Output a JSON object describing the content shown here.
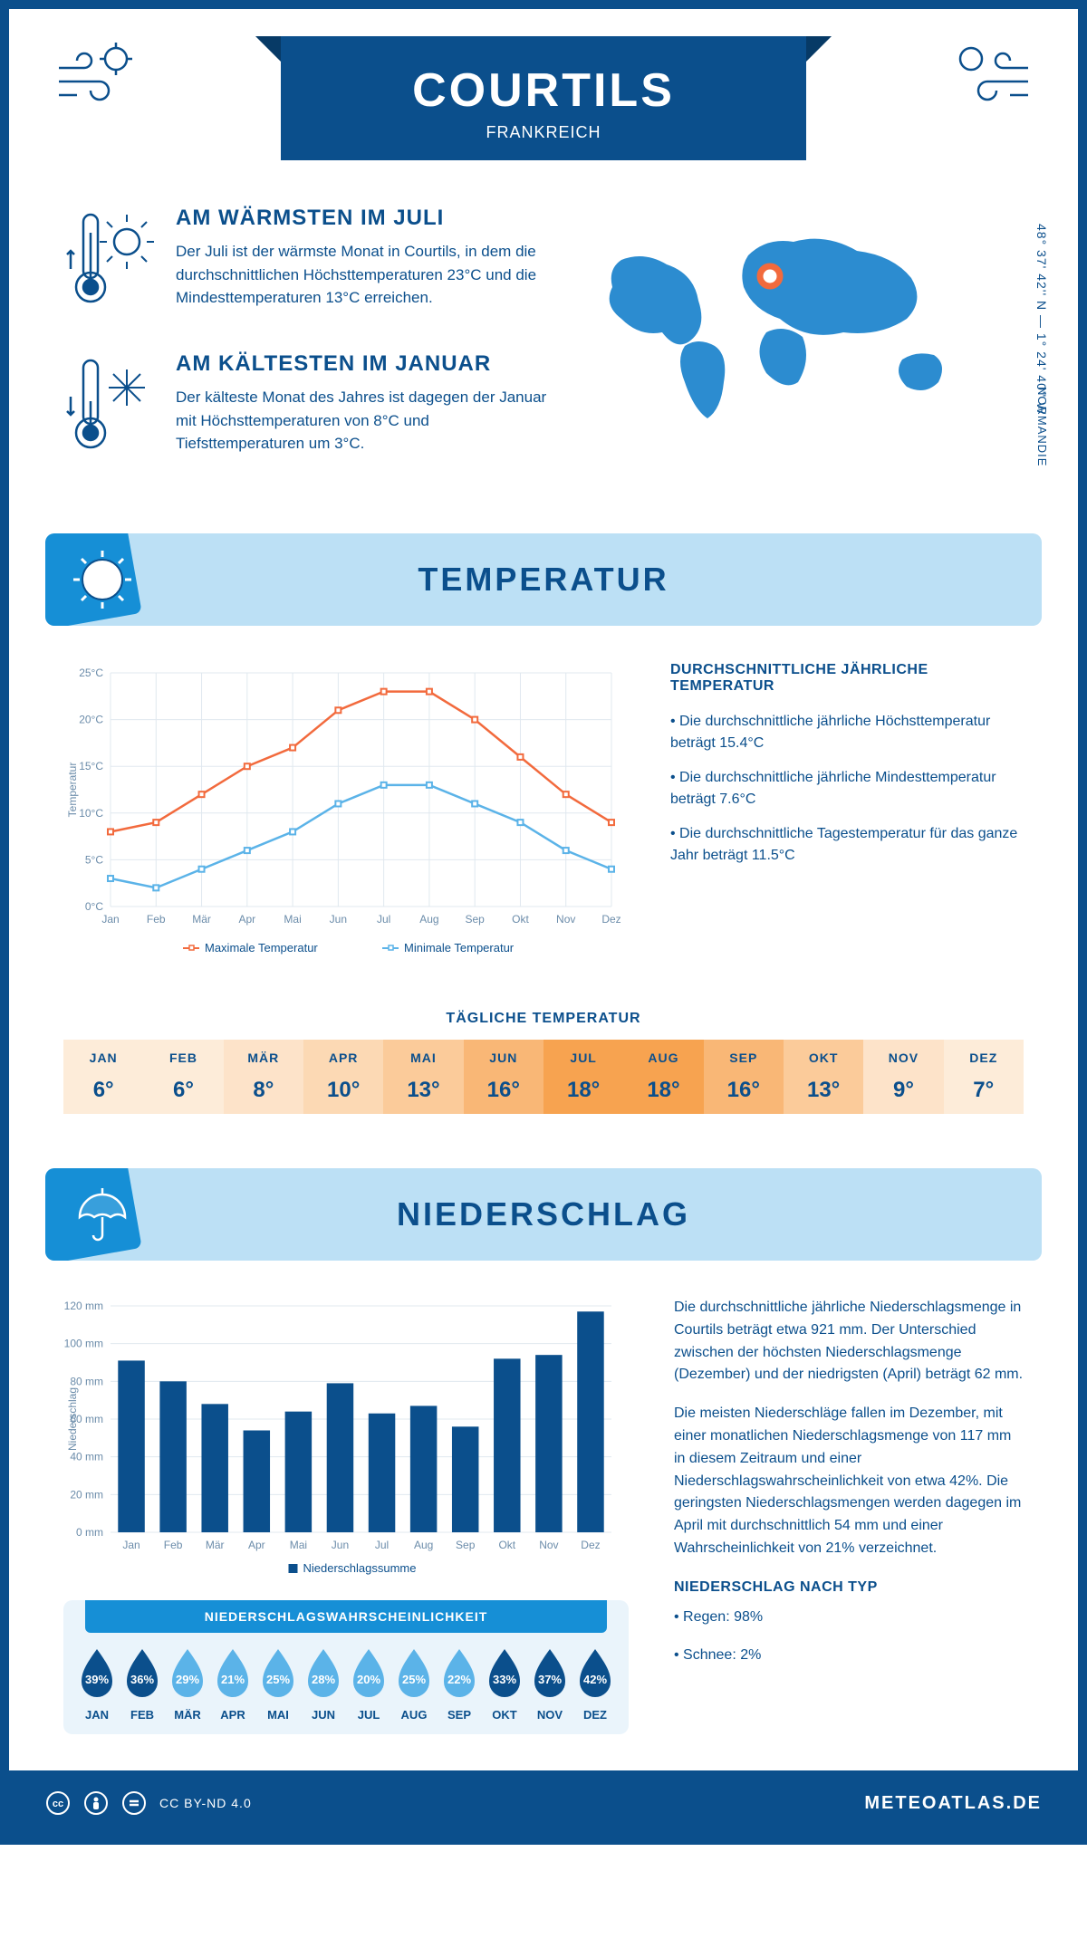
{
  "header": {
    "title": "COURTILS",
    "subtitle": "FRANKREICH"
  },
  "coords": "48° 37' 42'' N — 1° 24' 40'' W",
  "region": "NORMANDIE",
  "facts": {
    "warm": {
      "title": "AM WÄRMSTEN IM JULI",
      "text": "Der Juli ist der wärmste Monat in Courtils, in dem die durchschnittlichen Höchsttemperaturen 23°C und die Mindesttemperaturen 13°C erreichen."
    },
    "cold": {
      "title": "AM KÄLTESTEN IM JANUAR",
      "text": "Der kälteste Monat des Jahres ist dagegen der Januar mit Höchsttemperaturen von 8°C und Tiefsttemperaturen um 3°C."
    }
  },
  "temperature": {
    "section_title": "TEMPERATUR",
    "months": [
      "Jan",
      "Feb",
      "Mär",
      "Apr",
      "Mai",
      "Jun",
      "Jul",
      "Aug",
      "Sep",
      "Okt",
      "Nov",
      "Dez"
    ],
    "max": [
      8,
      9,
      12,
      15,
      17,
      21,
      23,
      23,
      20,
      16,
      12,
      9
    ],
    "min": [
      3,
      2,
      4,
      6,
      8,
      11,
      13,
      13,
      11,
      9,
      6,
      4
    ],
    "ylim": [
      0,
      25
    ],
    "ytick_step": 5,
    "ylabel": "Temperatur",
    "max_color": "#f26a3d",
    "min_color": "#5bb3e8",
    "grid_color": "#e0e8ef",
    "legend_max": "Maximale Temperatur",
    "legend_min": "Minimale Temperatur",
    "info_title": "DURCHSCHNITTLICHE JÄHRLICHE TEMPERATUR",
    "bullets": [
      "• Die durchschnittliche jährliche Höchsttemperatur beträgt 15.4°C",
      "• Die durchschnittliche jährliche Mindesttemperatur beträgt 7.6°C",
      "• Die durchschnittliche Tagestemperatur für das ganze Jahr beträgt 11.5°C"
    ],
    "daily_title": "TÄGLICHE TEMPERATUR",
    "daily_months": [
      "JAN",
      "FEB",
      "MÄR",
      "APR",
      "MAI",
      "JUN",
      "JUL",
      "AUG",
      "SEP",
      "OKT",
      "NOV",
      "DEZ"
    ],
    "daily_values": [
      "6°",
      "6°",
      "8°",
      "10°",
      "13°",
      "16°",
      "18°",
      "18°",
      "16°",
      "13°",
      "9°",
      "7°"
    ],
    "daily_colors": [
      "#fdecd9",
      "#fdecd9",
      "#fde3c9",
      "#fcd9b4",
      "#fbcb9a",
      "#f9b776",
      "#f7a350",
      "#f7a350",
      "#f9b776",
      "#fbcb9a",
      "#fde3c9",
      "#fdecd9"
    ]
  },
  "precipitation": {
    "section_title": "NIEDERSCHLAG",
    "months": [
      "Jan",
      "Feb",
      "Mär",
      "Apr",
      "Mai",
      "Jun",
      "Jul",
      "Aug",
      "Sep",
      "Okt",
      "Nov",
      "Dez"
    ],
    "values": [
      91,
      80,
      68,
      54,
      64,
      79,
      63,
      67,
      56,
      92,
      94,
      117
    ],
    "ylim": [
      0,
      120
    ],
    "ytick_step": 20,
    "ylabel": "Niederschlag",
    "bar_color": "#0b4f8c",
    "grid_color": "#e0e8ef",
    "legend": "Niederschlagssumme",
    "para1": "Die durchschnittliche jährliche Niederschlagsmenge in Courtils beträgt etwa 921 mm. Der Unterschied zwischen der höchsten Niederschlagsmenge (Dezember) und der niedrigsten (April) beträgt 62 mm.",
    "para2": "Die meisten Niederschläge fallen im Dezember, mit einer monatlichen Niederschlagsmenge von 117 mm in diesem Zeitraum und einer Niederschlagswahrscheinlichkeit von etwa 42%. Die geringsten Niederschlagsmengen werden dagegen im April mit durchschnittlich 54 mm und einer Wahrscheinlichkeit von 21% verzeichnet.",
    "type_title": "NIEDERSCHLAG NACH TYP",
    "type_bullets": [
      "• Regen: 98%",
      "• Schnee: 2%"
    ],
    "prob_title": "NIEDERSCHLAGSWAHRSCHEINLICHKEIT",
    "prob_months": [
      "JAN",
      "FEB",
      "MÄR",
      "APR",
      "MAI",
      "JUN",
      "JUL",
      "AUG",
      "SEP",
      "OKT",
      "NOV",
      "DEZ"
    ],
    "prob_values": [
      39,
      36,
      29,
      21,
      25,
      28,
      20,
      25,
      22,
      33,
      37,
      42
    ],
    "drop_light": "#5bb3e8",
    "drop_dark": "#0b4f8c"
  },
  "footer": {
    "license": "CC BY-ND 4.0",
    "site": "METEOATLAS.DE"
  }
}
